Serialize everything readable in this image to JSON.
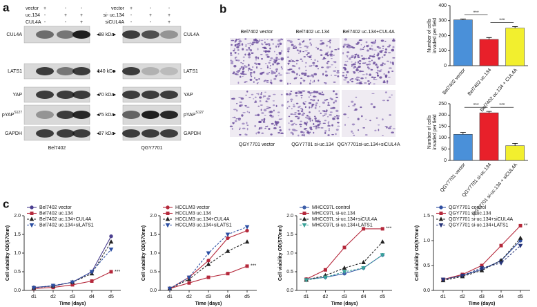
{
  "panels": {
    "a": "a",
    "b": "b",
    "c": "c"
  },
  "blots": {
    "left": {
      "conditions": [
        {
          "name": "vector",
          "signs": [
            "+",
            "-",
            "-"
          ]
        },
        {
          "name": "uc.134",
          "signs": [
            "-",
            "+",
            "+"
          ]
        },
        {
          "name": "CUL4A",
          "signs": [
            "-",
            "-",
            "+"
          ]
        }
      ],
      "cell_line": "Bel7402"
    },
    "right": {
      "conditions": [
        {
          "name": "vector",
          "signs": [
            "+",
            "-",
            "-"
          ]
        },
        {
          "name": "si- uc.134",
          "signs": [
            "-",
            "+",
            "+"
          ]
        },
        {
          "name": "siCUL4A",
          "signs": [
            "-",
            "-",
            "+"
          ]
        }
      ],
      "cell_line": "QGY7701"
    },
    "rows": [
      {
        "label": "CUL4A",
        "marker": "88 kDa"
      },
      {
        "label": "LATS1",
        "marker": "140 kDa"
      },
      {
        "label": "YAP",
        "marker": "70 kDa"
      },
      {
        "label": "pYAP",
        "label_sup": "S127",
        "marker": "75 kDa"
      },
      {
        "label": "GAPDH",
        "marker": "37 kDa"
      }
    ]
  },
  "images": {
    "top": [
      "Bel7402 vector",
      "Bel7402 uc.134",
      "Bel7402 uc.134+CUL4A"
    ],
    "bottom": [
      "QGY7701 vector",
      "QGY7701 si-uc.134",
      "QGY7701si-uc.134+siCUL4A"
    ]
  },
  "chart_data": [
    {
      "type": "bar",
      "categories": [
        "Bel7402 vector",
        "Bel7402 uc.134",
        "Bel7402 uc.134 + CUL4A"
      ],
      "values": [
        305,
        175,
        250
      ],
      "errors": [
        5,
        12,
        10
      ],
      "colors": [
        "#4a90d9",
        "#e8202a",
        "#f2ef2e"
      ],
      "ylabel": [
        "Number of cells",
        "invaded per field"
      ],
      "ylim": [
        0,
        400
      ],
      "yticks": [
        0,
        100,
        200,
        300,
        400
      ],
      "annotations": [
        "***",
        "***"
      ]
    },
    {
      "type": "bar",
      "categories": [
        "QGY7701 vector",
        "QGY7701 si-uc.134",
        "QGY7701 si-uc.134 + siCUL4A"
      ],
      "values": [
        115,
        210,
        65
      ],
      "errors": [
        8,
        6,
        10
      ],
      "colors": [
        "#4a90d9",
        "#e8202a",
        "#f2ef2e"
      ],
      "ylabel": [
        "Number of cells",
        "invaded per field"
      ],
      "ylim": [
        0,
        250
      ],
      "yticks": [
        0,
        50,
        100,
        150,
        200,
        250
      ],
      "annotations": [
        "***",
        "***"
      ]
    },
    {
      "type": "line",
      "xlabel": "Time (days)",
      "ylabel": "Cell viability OD(570nm)",
      "categories": [
        "d1",
        "d2",
        "d3",
        "d4",
        "d5"
      ],
      "ylim": [
        0,
        2
      ],
      "yticks": [
        {
          "value": 0,
          "label": "0.0"
        },
        0.5,
        {
          "value": 1,
          "label": "1.0"
        },
        1.5,
        {
          "value": 2,
          "label": "2.0"
        }
      ],
      "annotation": "***",
      "series": [
        {
          "name": "Bel7402 vector",
          "color": "#4b3f8f",
          "marker": "circle",
          "dash": false,
          "values": [
            0.08,
            0.12,
            0.22,
            0.5,
            1.45
          ]
        },
        {
          "name": "Bel7402 uc.134",
          "color": "#b5283b",
          "marker": "square",
          "dash": false,
          "values": [
            0.05,
            0.08,
            0.15,
            0.25,
            0.5
          ]
        },
        {
          "name": "Bel7402 uc.134+CUL4A",
          "color": "#222222",
          "marker": "triangle",
          "dash": true,
          "values": [
            0.07,
            0.12,
            0.22,
            0.45,
            1.3
          ]
        },
        {
          "name": "Bel7402 uc.134+siLATS1",
          "color": "#2c4fa3",
          "marker": "triangle-down",
          "dash": true,
          "values": [
            0.07,
            0.13,
            0.22,
            0.5,
            1.1
          ]
        }
      ]
    },
    {
      "type": "line",
      "xlabel": "Time (days)",
      "ylabel": "Cell viability OD(570nm)",
      "categories": [
        "d1",
        "d2",
        "d3",
        "d4",
        "d5"
      ],
      "ylim": [
        0,
        2
      ],
      "yticks": [
        {
          "value": 0,
          "label": "0.0"
        },
        0.5,
        {
          "value": 1,
          "label": "1.0"
        },
        1.5,
        {
          "value": 2,
          "label": "2.0"
        }
      ],
      "annotation": "***",
      "series": [
        {
          "name": "HCCLM3 vector",
          "color": "#b5283b",
          "marker": "circle",
          "dash": false,
          "values": [
            0.05,
            0.35,
            0.8,
            1.4,
            1.6
          ]
        },
        {
          "name": "HCCLM3 uc.134",
          "color": "#b5283b",
          "marker": "square",
          "dash": false,
          "values": [
            0.05,
            0.2,
            0.35,
            0.45,
            0.65
          ]
        },
        {
          "name": "HCCLM3 uc.134+CUL4A",
          "color": "#222222",
          "marker": "triangle",
          "dash": true,
          "values": [
            0.05,
            0.3,
            0.7,
            1.05,
            1.3
          ]
        },
        {
          "name": "HCCLM3 uc.134+siLATS1",
          "color": "#2c4fa3",
          "marker": "triangle-down",
          "dash": true,
          "values": [
            0.05,
            0.35,
            1.0,
            1.5,
            1.7
          ]
        }
      ]
    },
    {
      "type": "line",
      "xlabel": "Time (days)",
      "ylabel": "Cell viability OD(570nm)",
      "categories": [
        "d1",
        "d2",
        "d3",
        "d4",
        "d5"
      ],
      "ylim": [
        0,
        2
      ],
      "yticks": [
        {
          "value": 0,
          "label": "0.0"
        },
        0.5,
        {
          "value": 1,
          "label": "1.0"
        },
        1.5,
        {
          "value": 2,
          "label": "2.0"
        }
      ],
      "annotation": "***",
      "series": [
        {
          "name": "MHCC97L control",
          "color": "#3c5da8",
          "marker": "circle",
          "dash": false,
          "values": [
            0.3,
            0.35,
            0.45,
            0.6,
            0.95
          ]
        },
        {
          "name": "MHCC97L si-uc.134",
          "color": "#b5283b",
          "marker": "square",
          "dash": false,
          "values": [
            0.3,
            0.55,
            1.15,
            1.65,
            1.65
          ]
        },
        {
          "name": "MHCC97L si-uc.134+siCUL4A",
          "color": "#222222",
          "marker": "triangle",
          "dash": true,
          "values": [
            0.28,
            0.4,
            0.6,
            0.75,
            1.3
          ]
        },
        {
          "name": "MHCC97L si-uc.134+LATS1",
          "color": "#3aa39a",
          "marker": "triangle-down",
          "dash": true,
          "values": [
            0.28,
            0.35,
            0.5,
            0.6,
            0.95
          ]
        }
      ]
    },
    {
      "type": "line",
      "xlabel": "Time (days)",
      "ylabel": "Cell viability OD(570nm)",
      "categories": [
        "d1",
        "d2",
        "d3",
        "d4",
        "d5"
      ],
      "ylim": [
        0,
        1.5
      ],
      "yticks": [
        {
          "value": 0,
          "label": "0.0"
        },
        0.5,
        {
          "value": 1,
          "label": "1.0"
        },
        1.5
      ],
      "annotation": "**",
      "series": [
        {
          "name": "QGY7701 control",
          "color": "#2f4ea0",
          "marker": "circle",
          "dash": false,
          "values": [
            0.22,
            0.3,
            0.42,
            0.6,
            1.0
          ]
        },
        {
          "name": "QGY7701 si-uc.134",
          "color": "#b5283b",
          "marker": "square",
          "dash": false,
          "values": [
            0.22,
            0.32,
            0.5,
            0.9,
            1.3
          ]
        },
        {
          "name": "QGY7701 si-uc.134+siCUL4A",
          "color": "#222222",
          "marker": "triangle",
          "dash": true,
          "values": [
            0.2,
            0.28,
            0.4,
            0.6,
            1.05
          ]
        },
        {
          "name": "QGY7701 si-uc.134+LATS1",
          "color": "#27357a",
          "marker": "triangle-down",
          "dash": true,
          "values": [
            0.22,
            0.3,
            0.45,
            0.55,
            0.9
          ]
        }
      ]
    }
  ]
}
